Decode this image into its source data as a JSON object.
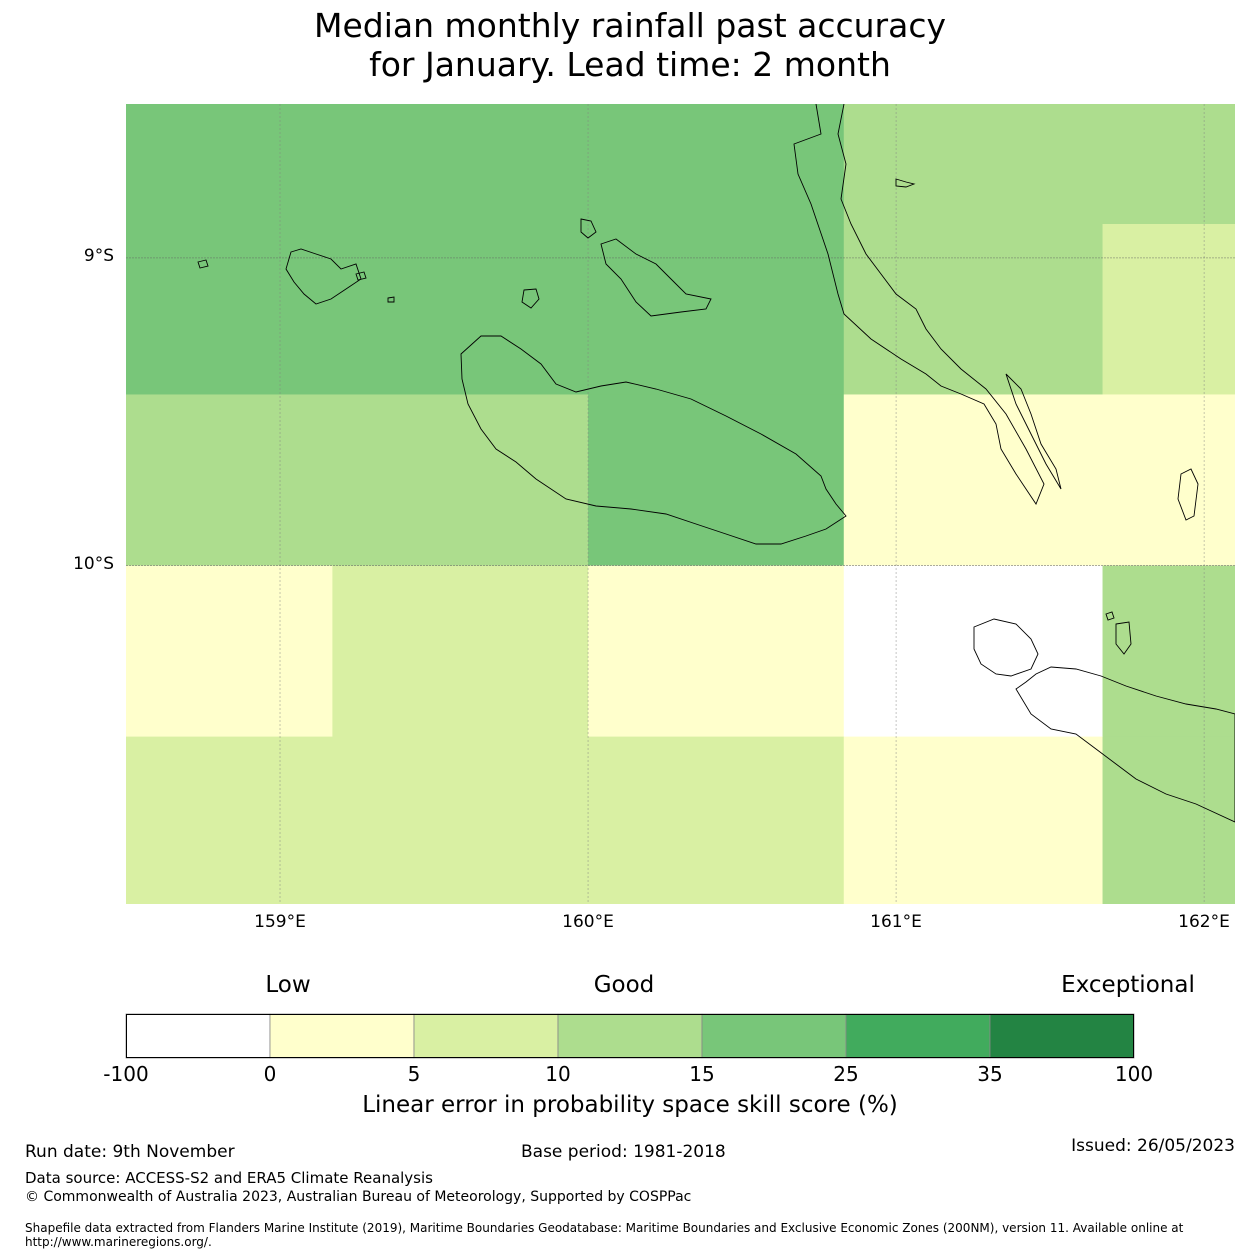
{
  "title": {
    "line1": "Median monthly rainfall past accuracy",
    "line2": "for January. Lead time: 2 month"
  },
  "map": {
    "lon_range": [
      158.5,
      162.1
    ],
    "lat_range": [
      -8.5,
      -11.1
    ],
    "lat_labels": [
      "9°S",
      "10°S"
    ],
    "lat_values": [
      -9,
      -10
    ],
    "lon_labels": [
      "159°E",
      "160°E",
      "161°E",
      "162°E"
    ],
    "lon_values": [
      159,
      160,
      161,
      162
    ],
    "cells": [
      {
        "lon0": 158.5,
        "lon1": 160.83,
        "lat0": -8.5,
        "lat1": -9.444,
        "color": "#78c679"
      },
      {
        "lon0": 160.83,
        "lon1": 162.1,
        "lat0": -8.5,
        "lat1": -8.89,
        "color": "#addd8e"
      },
      {
        "lon0": 160.83,
        "lon1": 161.67,
        "lat0": -8.89,
        "lat1": -9.444,
        "color": "#addd8e"
      },
      {
        "lon0": 161.67,
        "lon1": 162.1,
        "lat0": -8.89,
        "lat1": -9.444,
        "color": "#d9f0a3"
      },
      {
        "lon0": 158.5,
        "lon1": 160.0,
        "lat0": -9.444,
        "lat1": -10.0,
        "color": "#addd8e"
      },
      {
        "lon0": 160.0,
        "lon1": 160.83,
        "lat0": -9.444,
        "lat1": -10.0,
        "color": "#78c679"
      },
      {
        "lon0": 160.83,
        "lon1": 162.1,
        "lat0": -9.444,
        "lat1": -10.0,
        "color": "#ffffcc"
      },
      {
        "lon0": 158.5,
        "lon1": 159.17,
        "lat0": -10.0,
        "lat1": -10.556,
        "color": "#ffffcc"
      },
      {
        "lon0": 159.17,
        "lon1": 160.0,
        "lat0": -10.0,
        "lat1": -10.556,
        "color": "#d9f0a3"
      },
      {
        "lon0": 160.0,
        "lon1": 160.83,
        "lat0": -10.0,
        "lat1": -10.556,
        "color": "#ffffcc"
      },
      {
        "lon0": 160.83,
        "lon1": 161.67,
        "lat0": -10.0,
        "lat1": -10.556,
        "color": "#ffffff"
      },
      {
        "lon0": 161.67,
        "lon1": 162.1,
        "lat0": -10.0,
        "lat1": -10.556,
        "color": "#addd8e"
      },
      {
        "lon0": 158.5,
        "lon1": 160.83,
        "lat0": -10.556,
        "lat1": -11.1,
        "color": "#d9f0a3"
      },
      {
        "lon0": 160.83,
        "lon1": 161.67,
        "lat0": -10.556,
        "lat1": -11.1,
        "color": "#ffffcc"
      },
      {
        "lon0": 161.67,
        "lon1": 162.1,
        "lat0": -10.556,
        "lat1": -11.1,
        "color": "#addd8e"
      }
    ]
  },
  "categories": {
    "low": "Low",
    "good": "Good",
    "exceptional": "Exceptional"
  },
  "colorbar": {
    "ticks": [
      "-100",
      "0",
      "5",
      "10",
      "15",
      "25",
      "35",
      "100"
    ],
    "colors": [
      "#ffffff",
      "#ffffcc",
      "#d9f0a3",
      "#addd8e",
      "#78c679",
      "#41ab5d",
      "#238443"
    ],
    "caption": "Linear error in probability space skill score (%)"
  },
  "footer": {
    "run_date": "Run date: 9th November",
    "base_period": "Base period: 1981-2018",
    "issued": "Issued: 26/05/2023",
    "data_source": "Data source: ACCESS-S2 and ERA5 Climate Reanalysis",
    "copyright": "© Commonwealth of Australia 2023, Australian Bureau of Meteorology, Supported by COSPPac",
    "shapefile": "Shapefile data extracted from Flanders Marine Institute (2019), Maritime Boundaries Geodatabase: Maritime Boundaries and Exclusive Economic Zones (200NM), version 11. Available online at http://www.marineregions.org/."
  }
}
